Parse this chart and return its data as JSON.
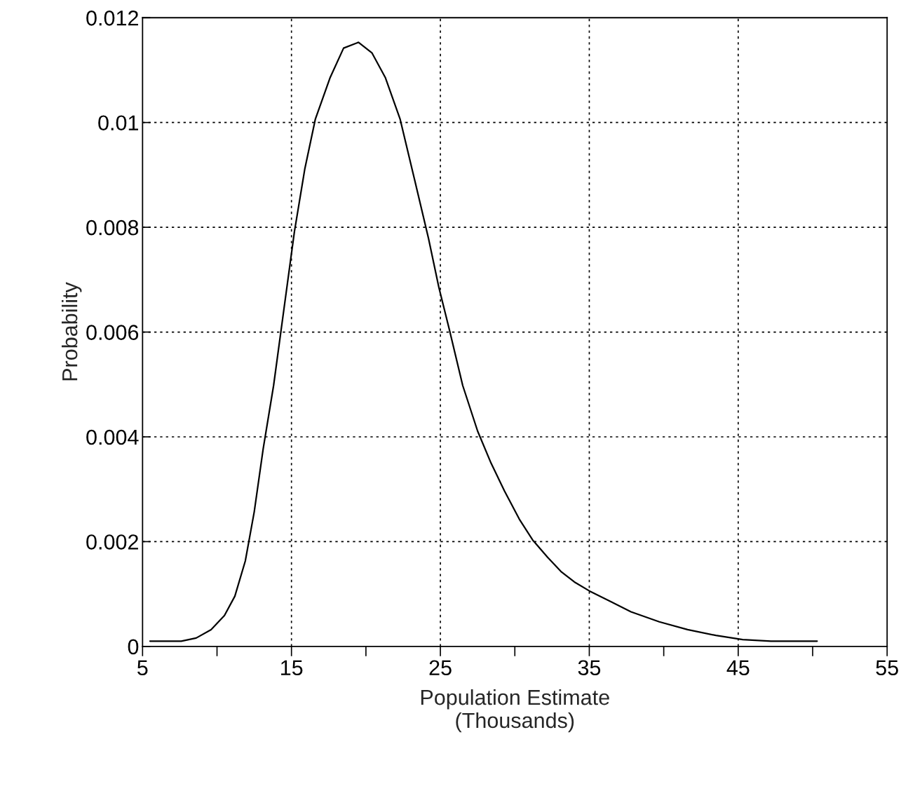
{
  "chart_data": {
    "type": "line",
    "xlabel": "Population Estimate\n(Thousands)",
    "ylabel": "Probability",
    "x": [
      5.5,
      7.6,
      8.6,
      9.6,
      10.5,
      11.2,
      11.9,
      12.5,
      13.1,
      13.8,
      14.5,
      15.2,
      15.9,
      16.6,
      17.6,
      18.5,
      19.5,
      20.4,
      21.3,
      22.3,
      23.2,
      24.2,
      24.9,
      25.6,
      26.5,
      27.5,
      28.4,
      29.3,
      30.3,
      31.2,
      32.2,
      33.1,
      34.0,
      35.0,
      36.4,
      37.8,
      39.7,
      41.6,
      43.5,
      45.3,
      47.2,
      50.3
    ],
    "series": [
      {
        "color": "#000000",
        "values": [
          0.0001,
          0.0001,
          0.00016,
          0.00032,
          0.00059,
          0.00096,
          0.00163,
          0.00257,
          0.00377,
          0.00498,
          0.00645,
          0.00792,
          0.00912,
          0.01006,
          0.01086,
          0.01142,
          0.01153,
          0.01133,
          0.01086,
          0.01006,
          0.00899,
          0.00779,
          0.00685,
          0.00605,
          0.00498,
          0.00411,
          0.0035,
          0.00297,
          0.00243,
          0.00203,
          0.0017,
          0.00143,
          0.00123,
          0.00106,
          0.00086,
          0.00066,
          0.00047,
          0.00032,
          0.00021,
          0.00013,
          0.0001,
          0.0001
        ]
      }
    ],
    "xlim": [
      5,
      55
    ],
    "ylim": [
      0,
      0.012
    ],
    "xticks": [
      5,
      {
        "value": 10,
        "label": null
      },
      15,
      {
        "value": 20,
        "label": null
      },
      25,
      {
        "value": 30,
        "label": null
      },
      35,
      {
        "value": 40,
        "label": null
      },
      45,
      {
        "value": 50,
        "label": null
      },
      55
    ],
    "yticks": [
      0,
      0.002,
      0.004,
      0.006,
      0.008,
      0.01,
      0.012
    ],
    "grid": true,
    "marker": "none",
    "line_style": "solid"
  }
}
